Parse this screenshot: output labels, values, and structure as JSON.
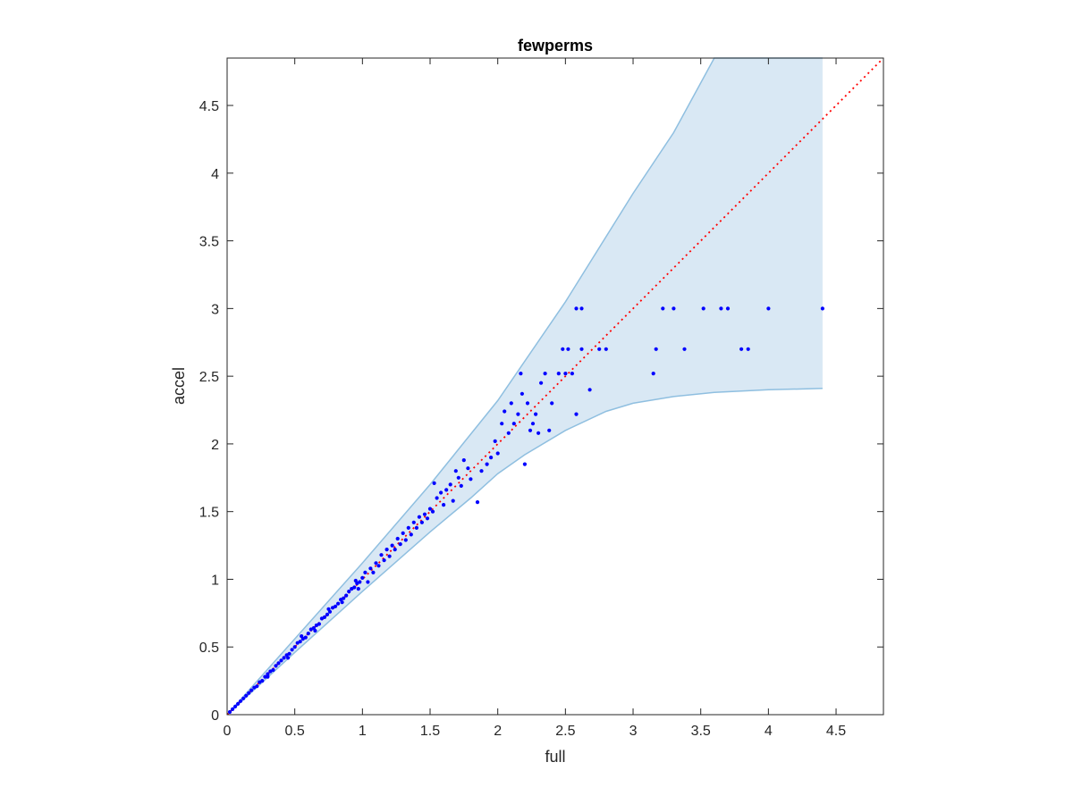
{
  "chart_data": {
    "type": "scatter",
    "title": "fewperms",
    "xlabel": "full",
    "ylabel": "accel",
    "xlim": [
      0,
      4.85
    ],
    "ylim": [
      0,
      4.85
    ],
    "xticks": [
      0,
      0.5,
      1,
      1.5,
      2,
      2.5,
      3,
      3.5,
      4,
      4.5
    ],
    "xtick_labels": [
      "0",
      "0.5",
      "1",
      "1.5",
      "2",
      "2.5",
      "3",
      "3.5",
      "4",
      "4.5"
    ],
    "yticks": [
      0,
      0.5,
      1,
      1.5,
      2,
      2.5,
      3,
      3.5,
      4,
      4.5
    ],
    "ytick_labels": [
      "0",
      "0.5",
      "1",
      "1.5",
      "2",
      "2.5",
      "3",
      "3.5",
      "4",
      "4.5"
    ],
    "grid": false,
    "colors": {
      "points": "#0000ff",
      "band_fill": "#d9e8f4",
      "band_edge": "#8fbfe0",
      "reference_line": "#ff0000",
      "axes": "#262626"
    },
    "reference_line": {
      "style": "dotted",
      "x": [
        0,
        4.85
      ],
      "y": [
        0,
        4.85
      ]
    },
    "confidence_band": {
      "upper": [
        [
          0,
          0
        ],
        [
          0.5,
          0.56
        ],
        [
          1,
          1.12
        ],
        [
          1.5,
          1.7
        ],
        [
          2,
          2.32
        ],
        [
          2.5,
          3.05
        ],
        [
          3,
          3.85
        ],
        [
          3.3,
          4.3
        ],
        [
          3.6,
          4.85
        ],
        [
          4.4,
          4.85
        ]
      ],
      "lower": [
        [
          0,
          0
        ],
        [
          0.5,
          0.46
        ],
        [
          1,
          0.91
        ],
        [
          1.5,
          1.35
        ],
        [
          1.8,
          1.6
        ],
        [
          2,
          1.78
        ],
        [
          2.2,
          1.92
        ],
        [
          2.5,
          2.1
        ],
        [
          2.8,
          2.24
        ],
        [
          3,
          2.3
        ],
        [
          3.3,
          2.35
        ],
        [
          3.6,
          2.38
        ],
        [
          4,
          2.4
        ],
        [
          4.4,
          2.41
        ]
      ]
    },
    "series": [
      {
        "points": [
          [
            0.02,
            0.02
          ],
          [
            0.04,
            0.04
          ],
          [
            0.06,
            0.06
          ],
          [
            0.08,
            0.08
          ],
          [
            0.1,
            0.1
          ],
          [
            0.12,
            0.12
          ],
          [
            0.14,
            0.14
          ],
          [
            0.16,
            0.16
          ],
          [
            0.18,
            0.18
          ],
          [
            0.2,
            0.2
          ],
          [
            0.22,
            0.21
          ],
          [
            0.24,
            0.24
          ],
          [
            0.26,
            0.25
          ],
          [
            0.28,
            0.28
          ],
          [
            0.3,
            0.3
          ],
          [
            0.32,
            0.32
          ],
          [
            0.34,
            0.33
          ],
          [
            0.36,
            0.36
          ],
          [
            0.38,
            0.38
          ],
          [
            0.4,
            0.4
          ],
          [
            0.42,
            0.42
          ],
          [
            0.44,
            0.44
          ],
          [
            0.46,
            0.45
          ],
          [
            0.48,
            0.48
          ],
          [
            0.5,
            0.5
          ],
          [
            0.52,
            0.53
          ],
          [
            0.54,
            0.54
          ],
          [
            0.56,
            0.56
          ],
          [
            0.58,
            0.57
          ],
          [
            0.6,
            0.6
          ],
          [
            0.62,
            0.63
          ],
          [
            0.64,
            0.64
          ],
          [
            0.66,
            0.66
          ],
          [
            0.68,
            0.67
          ],
          [
            0.7,
            0.71
          ],
          [
            0.72,
            0.72
          ],
          [
            0.74,
            0.74
          ],
          [
            0.76,
            0.76
          ],
          [
            0.78,
            0.79
          ],
          [
            0.8,
            0.8
          ],
          [
            0.82,
            0.82
          ],
          [
            0.84,
            0.85
          ],
          [
            0.86,
            0.86
          ],
          [
            0.88,
            0.88
          ],
          [
            0.9,
            0.91
          ],
          [
            0.92,
            0.93
          ],
          [
            0.94,
            0.94
          ],
          [
            0.96,
            0.97
          ],
          [
            0.98,
            0.98
          ],
          [
            1,
            1.01
          ],
          [
            0.3,
            0.28
          ],
          [
            0.45,
            0.42
          ],
          [
            0.55,
            0.58
          ],
          [
            0.65,
            0.62
          ],
          [
            0.75,
            0.78
          ],
          [
            0.85,
            0.83
          ],
          [
            0.95,
            0.99
          ],
          [
            0.97,
            0.93
          ],
          [
            1.02,
            1.05
          ],
          [
            1.04,
            0.98
          ],
          [
            1.06,
            1.08
          ],
          [
            1.08,
            1.05
          ],
          [
            1.1,
            1.12
          ],
          [
            1.12,
            1.1
          ],
          [
            1.14,
            1.18
          ],
          [
            1.16,
            1.14
          ],
          [
            1.18,
            1.22
          ],
          [
            1.2,
            1.17
          ],
          [
            1.22,
            1.25
          ],
          [
            1.24,
            1.22
          ],
          [
            1.26,
            1.3
          ],
          [
            1.28,
            1.26
          ],
          [
            1.3,
            1.34
          ],
          [
            1.32,
            1.29
          ],
          [
            1.34,
            1.38
          ],
          [
            1.36,
            1.33
          ],
          [
            1.38,
            1.42
          ],
          [
            1.4,
            1.38
          ],
          [
            1.42,
            1.46
          ],
          [
            1.44,
            1.42
          ],
          [
            1.46,
            1.48
          ],
          [
            1.48,
            1.45
          ],
          [
            1.5,
            1.52
          ],
          [
            1.52,
            1.5
          ],
          [
            1.53,
            1.71
          ],
          [
            1.55,
            1.6
          ],
          [
            1.58,
            1.64
          ],
          [
            1.6,
            1.55
          ],
          [
            1.62,
            1.66
          ],
          [
            1.65,
            1.7
          ],
          [
            1.67,
            1.58
          ],
          [
            1.69,
            1.8
          ],
          [
            1.71,
            1.75
          ],
          [
            1.73,
            1.69
          ],
          [
            1.75,
            1.88
          ],
          [
            1.78,
            1.82
          ],
          [
            1.8,
            1.74
          ],
          [
            1.85,
            1.57
          ],
          [
            1.88,
            1.8
          ],
          [
            1.92,
            1.85
          ],
          [
            1.95,
            1.9
          ],
          [
            1.98,
            2.02
          ],
          [
            2,
            1.93
          ],
          [
            2.03,
            2.15
          ],
          [
            2.05,
            2.24
          ],
          [
            2.08,
            2.08
          ],
          [
            2.1,
            2.3
          ],
          [
            2.12,
            2.15
          ],
          [
            2.15,
            2.22
          ],
          [
            2.17,
            2.52
          ],
          [
            2.18,
            2.37
          ],
          [
            2.2,
            1.85
          ],
          [
            2.22,
            2.3
          ],
          [
            2.24,
            2.1
          ],
          [
            2.26,
            2.15
          ],
          [
            2.28,
            2.22
          ],
          [
            2.3,
            2.08
          ],
          [
            2.32,
            2.45
          ],
          [
            2.35,
            2.52
          ],
          [
            2.38,
            2.1
          ],
          [
            2.4,
            2.3
          ],
          [
            2.45,
            2.52
          ],
          [
            2.48,
            2.7
          ],
          [
            2.5,
            2.52
          ],
          [
            2.52,
            2.7
          ],
          [
            2.55,
            2.52
          ],
          [
            2.58,
            2.22
          ],
          [
            2.58,
            3.0
          ],
          [
            2.62,
            3.0
          ],
          [
            2.62,
            2.7
          ],
          [
            2.68,
            2.4
          ],
          [
            2.75,
            2.7
          ],
          [
            2.8,
            2.7
          ],
          [
            3.15,
            2.52
          ],
          [
            3.17,
            2.7
          ],
          [
            3.22,
            3.0
          ],
          [
            3.3,
            3.0
          ],
          [
            3.38,
            2.7
          ],
          [
            3.52,
            3.0
          ],
          [
            3.65,
            3.0
          ],
          [
            3.7,
            3.0
          ],
          [
            3.8,
            2.7
          ],
          [
            3.85,
            2.7
          ],
          [
            4.0,
            3.0
          ],
          [
            4.4,
            3.0
          ]
        ]
      }
    ]
  }
}
